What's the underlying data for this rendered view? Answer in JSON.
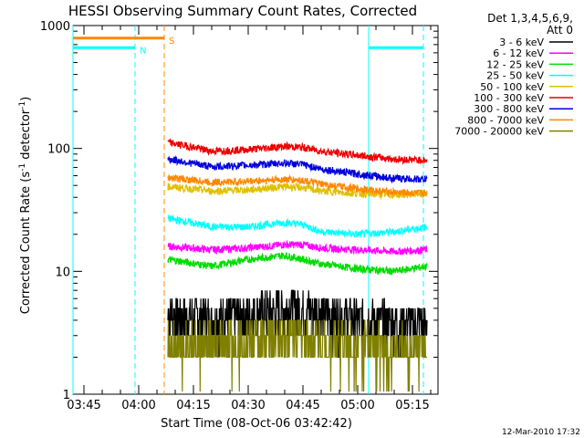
{
  "chart_data": {
    "type": "line",
    "title": "HESSI Observing Summary Count Rates, Corrected",
    "xlabel": "Start Time (08-Oct-06 03:42:42)",
    "ylabel_main": "Corrected Count Rate (s",
    "ylabel_sup1": "-1",
    "ylabel_mid": " detector",
    "ylabel_sup2": "-1",
    "ylabel_end": ")",
    "yscale": "log",
    "ylim": [
      1,
      1000
    ],
    "xlim": [
      "03:42",
      "05:22"
    ],
    "x_ticks": [
      "03:45",
      "04:00",
      "04:15",
      "04:30",
      "04:45",
      "05:00",
      "05:15"
    ],
    "y_ticks": [
      "1",
      "10",
      "100",
      "1000"
    ],
    "legend_header": "Det 1,3,4,5,6,9,",
    "legend_header2": "Att 0",
    "legend_position": "right",
    "series": [
      {
        "name": "3 - 6 keV",
        "color": "#000000",
        "start": "04:08",
        "end": "05:19",
        "x": [
          "04:08",
          "04:20",
          "04:30",
          "04:40",
          "04:45",
          "04:50",
          "05:00",
          "05:10",
          "05:19"
        ],
        "values": [
          4.5,
          4.2,
          4.5,
          5.0,
          5.2,
          4.6,
          4.2,
          3.8,
          3.8
        ]
      },
      {
        "name": "6 - 12 keV",
        "color": "#ff00ff",
        "start": "04:08",
        "end": "05:19",
        "x": [
          "04:08",
          "04:20",
          "04:30",
          "04:40",
          "04:45",
          "04:50",
          "05:00",
          "05:10",
          "05:19"
        ],
        "values": [
          16,
          15,
          15.5,
          16.5,
          16.5,
          15.5,
          15,
          14.5,
          15
        ]
      },
      {
        "name": "12 - 25 keV",
        "color": "#00dd00",
        "start": "04:08",
        "end": "05:19",
        "x": [
          "04:08",
          "04:20",
          "04:30",
          "04:40",
          "04:45",
          "04:50",
          "05:00",
          "05:10",
          "05:19"
        ],
        "values": [
          12.5,
          11,
          12.5,
          13.5,
          12.5,
          11.5,
          10.5,
          10,
          11
        ]
      },
      {
        "name": "25 - 50 keV",
        "color": "#00ffff",
        "start": "04:08",
        "end": "05:19",
        "x": [
          "04:08",
          "04:20",
          "04:30",
          "04:40",
          "04:45",
          "04:50",
          "05:00",
          "05:10",
          "05:19"
        ],
        "values": [
          27,
          23,
          23,
          25,
          24,
          21,
          20,
          21,
          23
        ]
      },
      {
        "name": "50 - 100 keV",
        "color": "#e0c000",
        "start": "04:08",
        "end": "05:19",
        "x": [
          "04:08",
          "04:20",
          "04:30",
          "04:40",
          "04:45",
          "04:50",
          "05:00",
          "05:10",
          "05:19"
        ],
        "values": [
          49,
          45,
          46,
          49,
          48,
          45,
          43,
          42,
          43
        ]
      },
      {
        "name": "100 - 300 keV",
        "color": "#ee0000",
        "start": "04:08",
        "end": "05:19",
        "x": [
          "04:08",
          "04:20",
          "04:30",
          "04:40",
          "04:45",
          "04:50",
          "05:00",
          "05:10",
          "05:19"
        ],
        "values": [
          112,
          95,
          98,
          104,
          102,
          95,
          88,
          82,
          80
        ]
      },
      {
        "name": "300 - 800 keV",
        "color": "#0000dd",
        "start": "04:08",
        "end": "05:19",
        "x": [
          "04:08",
          "04:20",
          "04:30",
          "04:40",
          "04:45",
          "04:50",
          "05:00",
          "05:10",
          "05:19"
        ],
        "values": [
          82,
          71,
          73,
          76,
          74,
          68,
          62,
          57,
          56
        ]
      },
      {
        "name": "800 - 7000 keV",
        "color": "#ff8800",
        "start": "04:08",
        "end": "05:19",
        "x": [
          "04:08",
          "04:20",
          "04:30",
          "04:40",
          "04:45",
          "04:50",
          "05:00",
          "05:10",
          "05:19"
        ],
        "values": [
          58,
          53,
          54,
          56,
          55,
          51,
          47,
          44,
          43
        ]
      },
      {
        "name": "7000 - 20000 keV",
        "color": "#808000",
        "start": "04:08",
        "end": "05:19",
        "x": [
          "04:08",
          "04:20",
          "04:30",
          "04:40",
          "04:45",
          "04:50",
          "05:00",
          "05:10",
          "05:19"
        ],
        "values": [
          2.7,
          2.5,
          2.7,
          3.0,
          3.0,
          2.7,
          2.5,
          2.4,
          2.5
        ]
      }
    ],
    "annotations": [
      {
        "label": "N",
        "color": "#00ffff",
        "x_start": "03:42",
        "x_end": "03:59",
        "x2_start": "05:03",
        "x2_end": "05:18",
        "y": 660
      },
      {
        "label": "S",
        "color": "#ff8800",
        "x_start": "03:42",
        "x_end": "04:07",
        "y": 790
      }
    ],
    "vertical_lines": [
      {
        "x": "03:42",
        "color": "#00ffff",
        "style": "solid"
      },
      {
        "x": "03:59",
        "color": "#00ffff",
        "style": "dashed"
      },
      {
        "x": "04:07",
        "color": "#ff8800",
        "style": "dashed"
      },
      {
        "x": "05:03",
        "color": "#00ffff",
        "style": "solid"
      },
      {
        "x": "05:18",
        "color": "#00ffff",
        "style": "dashed"
      }
    ],
    "grid": false
  },
  "footer": {
    "timestamp": "12-Mar-2010 17:32"
  },
  "colors": {
    "background": "#ffffff",
    "axes": "#000000"
  }
}
